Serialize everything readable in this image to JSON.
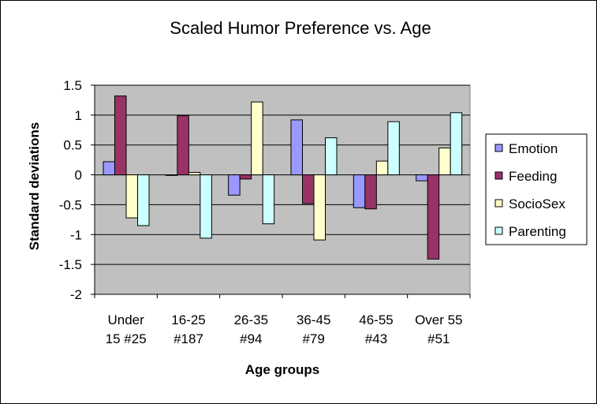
{
  "chart_data": {
    "type": "bar",
    "title": "Scaled Humor Preference vs. Age",
    "xlabel": "Age groups",
    "ylabel": "Standard deviations",
    "ylim": [
      -2,
      1.5
    ],
    "yticks": [
      "1.5",
      "1",
      "0.5",
      "0",
      "-0.5",
      "-1",
      "-1.5",
      "-2"
    ],
    "ytick_values": [
      1.5,
      1,
      0.5,
      0,
      -0.5,
      -1,
      -1.5,
      -2
    ],
    "grid": true,
    "legend_position": "right",
    "categories": [
      [
        "Under",
        "15 #25"
      ],
      [
        "16-25",
        "#187"
      ],
      [
        "26-35",
        "#94"
      ],
      [
        "36-45",
        "#79"
      ],
      [
        "46-55",
        "#43"
      ],
      [
        "Over 55",
        "#51"
      ]
    ],
    "series": [
      {
        "name": "Emotion",
        "color": "#9999ff",
        "values": [
          0.22,
          -0.01,
          -0.34,
          0.92,
          -0.55,
          -0.1
        ]
      },
      {
        "name": "Feeding",
        "color": "#993366",
        "values": [
          1.32,
          0.99,
          -0.07,
          -0.48,
          -0.57,
          -1.41
        ]
      },
      {
        "name": "SocioSex",
        "color": "#ffffcc",
        "values": [
          -0.72,
          0.04,
          1.22,
          -1.09,
          0.23,
          0.45
        ]
      },
      {
        "name": "Parenting",
        "color": "#ccffff",
        "values": [
          -0.85,
          -1.06,
          -0.82,
          0.62,
          0.89,
          1.04
        ]
      }
    ],
    "plot_background": "#c0c0c0"
  }
}
